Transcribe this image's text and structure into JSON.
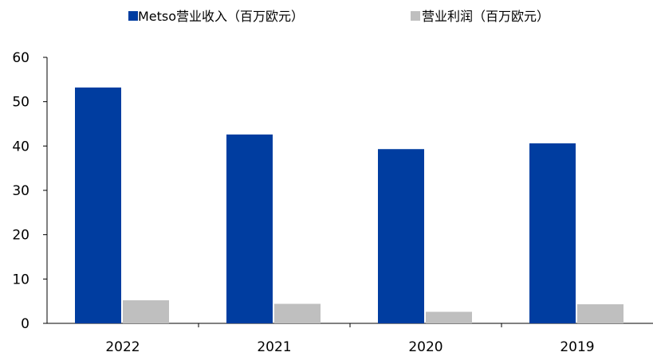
{
  "chart_data": {
    "type": "bar",
    "categories": [
      "2022",
      "2021",
      "2020",
      "2019"
    ],
    "series": [
      {
        "name": "Metso营业收入（百万欧元）",
        "values": [
          53.2,
          42.6,
          39.3,
          40.6
        ],
        "color": "#003DA0"
      },
      {
        "name": "营业利润（百万欧元）",
        "values": [
          5.2,
          4.4,
          2.6,
          4.3
        ],
        "color": "#BFBFBF"
      }
    ],
    "ylim": [
      0,
      60
    ],
    "yticks": [
      0,
      10,
      20,
      30,
      40,
      50,
      60
    ],
    "xlabel": "",
    "ylabel": "",
    "title": "",
    "grid": false,
    "legend_position": "top"
  }
}
